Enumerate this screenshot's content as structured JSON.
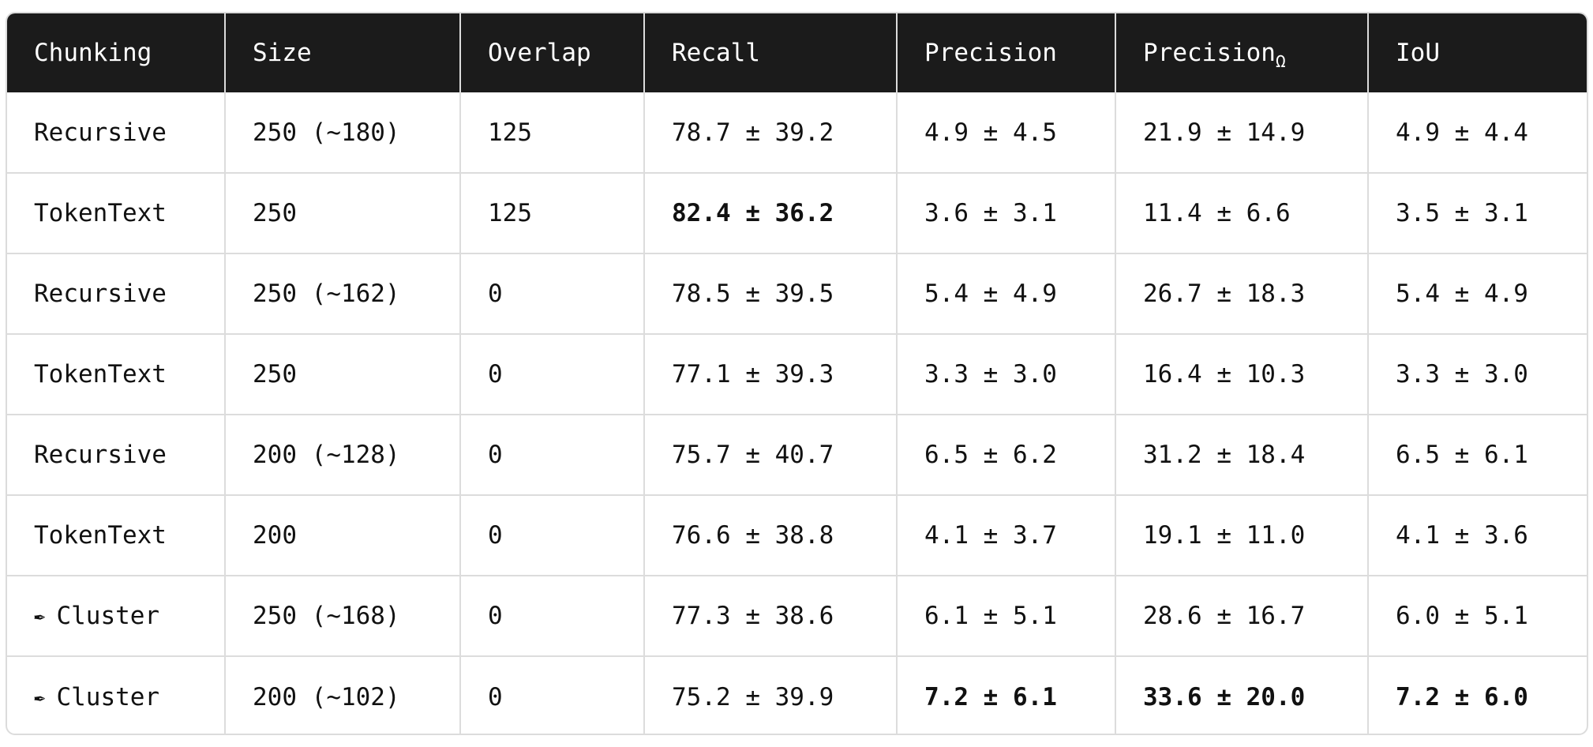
{
  "table": {
    "headers": [
      "Chunking",
      "Size",
      "Overlap",
      "Recall",
      "Precision",
      "Precision",
      "IoU"
    ],
    "header_subscripts": {
      "5": "Ω"
    },
    "rows": [
      {
        "icon": "",
        "chunking": "Recursive",
        "size": "250 (~180)",
        "overlap": "125",
        "recall": "78.7 ± 39.2",
        "precision": "4.9 ± 4.5",
        "precision_omega": "21.9 ± 14.9",
        "iou": "4.9 ± 4.4"
      },
      {
        "icon": "",
        "chunking": "TokenText",
        "size": "250",
        "overlap": "125",
        "recall": "82.4 ± 36.2",
        "precision": "3.6 ± 3.1",
        "precision_omega": "11.4 ± 6.6",
        "iou": "3.5 ± 3.1"
      },
      {
        "icon": "",
        "chunking": "Recursive",
        "size": "250 (~162)",
        "overlap": "0",
        "recall": "78.5 ± 39.5",
        "precision": "5.4 ± 4.9",
        "precision_omega": "26.7 ± 18.3",
        "iou": "5.4 ± 4.9"
      },
      {
        "icon": "",
        "chunking": "TokenText",
        "size": "250",
        "overlap": "0",
        "recall": "77.1 ± 39.3",
        "precision": "3.3 ± 3.0",
        "precision_omega": "16.4 ± 10.3",
        "iou": "3.3 ± 3.0"
      },
      {
        "icon": "",
        "chunking": "Recursive",
        "size": "200 (~128)",
        "overlap": "0",
        "recall": "75.7 ± 40.7",
        "precision": "6.5 ± 6.2",
        "precision_omega": "31.2 ± 18.4",
        "iou": "6.5 ± 6.1"
      },
      {
        "icon": "",
        "chunking": "TokenText",
        "size": "200",
        "overlap": "0",
        "recall": "76.6 ± 38.8",
        "precision": "4.1 ± 3.7",
        "precision_omega": "19.1 ± 11.0",
        "iou": "4.1 ± 3.6"
      },
      {
        "icon": "✒",
        "chunking": "Cluster",
        "size": "250 (~168)",
        "overlap": "0",
        "recall": "77.3 ± 38.6",
        "precision": "6.1 ± 5.1",
        "precision_omega": "28.6 ± 16.7",
        "iou": "6.0 ± 5.1"
      },
      {
        "icon": "✒",
        "chunking": "Cluster",
        "size": "200 (~102)",
        "overlap": "0",
        "recall": "75.2 ± 39.9",
        "precision": "7.2 ± 6.1",
        "precision_omega": "33.6 ± 20.0",
        "iou": "7.2 ± 6.0"
      }
    ],
    "bold_cells": [
      "1.recall",
      "7.precision",
      "7.precision_omega",
      "7.iou"
    ]
  },
  "colors": {
    "header_bg": "#1b1b1b",
    "header_text": "#ffffff",
    "grid": "#dcdcdc",
    "body_text": "#111111"
  }
}
